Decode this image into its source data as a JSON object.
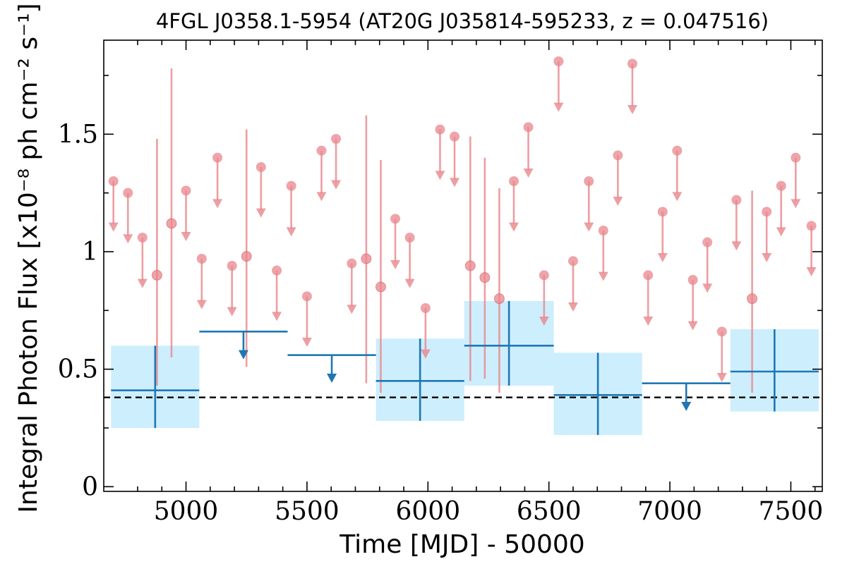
{
  "chart_data": {
    "type": "scatter",
    "title": "4FGL J0358.1-5954 (AT20G J035814-595233, z = 0.047516)",
    "xlabel": "Time [MJD] - 50000",
    "ylabel": "Integral Photon Flux [x10⁻⁸ ph cm⁻² s⁻¹]",
    "xlim": [
      4660,
      7630
    ],
    "ylim": [
      -0.02,
      1.9
    ],
    "xticks": [
      5000,
      5500,
      6000,
      6500,
      7000,
      7500
    ],
    "xtick_labels": [
      "5000",
      "5500",
      "6000",
      "6500",
      "7000",
      "7500"
    ],
    "yticks": [
      0,
      0.5,
      1,
      1.5
    ],
    "ytick_labels": [
      "0",
      "0.5",
      "1",
      "1.5"
    ],
    "reference_line": {
      "y": 0.38,
      "style": "dashed"
    },
    "colors": {
      "fine": "#e8868c",
      "coarse": "#1f77b4",
      "band": "#cdeefc",
      "reference": "#000000"
    },
    "series": [
      {
        "bins": [
          {
            "x": 4700,
            "y": 1.3,
            "ul": true
          },
          {
            "x": 4760,
            "y": 1.25,
            "ul": true
          },
          {
            "x": 4820,
            "y": 1.06,
            "ul": true
          },
          {
            "x": 4880,
            "y": 0.9,
            "lo": 0.43,
            "hi": 1.48
          },
          {
            "x": 4940,
            "y": 1.12,
            "lo": 0.55,
            "hi": 1.78
          },
          {
            "x": 5000,
            "y": 1.26,
            "ul": true
          },
          {
            "x": 5065,
            "y": 0.97,
            "ul": true
          },
          {
            "x": 5130,
            "y": 1.4,
            "ul": true
          },
          {
            "x": 5190,
            "y": 0.94,
            "ul": true
          },
          {
            "x": 5250,
            "y": 0.98,
            "lo": 0.51,
            "hi": 1.52
          },
          {
            "x": 5310,
            "y": 1.36,
            "ul": true
          },
          {
            "x": 5375,
            "y": 0.92,
            "ul": true
          },
          {
            "x": 5435,
            "y": 1.28,
            "ul": true
          },
          {
            "x": 5500,
            "y": 0.81,
            "ul": true
          },
          {
            "x": 5560,
            "y": 1.43,
            "ul": true
          },
          {
            "x": 5620,
            "y": 1.48,
            "ul": true
          },
          {
            "x": 5685,
            "y": 0.95,
            "ul": true
          },
          {
            "x": 5745,
            "y": 0.97,
            "lo": 0.44,
            "hi": 1.58
          },
          {
            "x": 5805,
            "y": 0.85,
            "lo": 0.4,
            "hi": 1.39
          },
          {
            "x": 5865,
            "y": 1.14,
            "ul": true
          },
          {
            "x": 5925,
            "y": 1.06,
            "ul": true
          },
          {
            "x": 5990,
            "y": 0.76,
            "ul": true
          },
          {
            "x": 6050,
            "y": 1.52,
            "ul": true
          },
          {
            "x": 6110,
            "y": 1.49,
            "ul": true
          },
          {
            "x": 6175,
            "y": 0.94,
            "lo": 0.45,
            "hi": 1.49
          },
          {
            "x": 6235,
            "y": 0.89,
            "lo": 0.46,
            "hi": 1.4
          },
          {
            "x": 6295,
            "y": 0.8,
            "lo": 0.4,
            "hi": 1.27
          },
          {
            "x": 6355,
            "y": 1.3,
            "ul": true
          },
          {
            "x": 6415,
            "y": 1.53,
            "ul": true
          },
          {
            "x": 6480,
            "y": 0.9,
            "ul": true
          },
          {
            "x": 6540,
            "y": 1.81,
            "ul": true
          },
          {
            "x": 6600,
            "y": 0.96,
            "ul": true
          },
          {
            "x": 6665,
            "y": 1.3,
            "ul": true
          },
          {
            "x": 6725,
            "y": 1.09,
            "ul": true
          },
          {
            "x": 6785,
            "y": 1.41,
            "ul": true
          },
          {
            "x": 6845,
            "y": 1.8,
            "ul": true
          },
          {
            "x": 6910,
            "y": 0.9,
            "ul": true
          },
          {
            "x": 6970,
            "y": 1.17,
            "ul": true
          },
          {
            "x": 7030,
            "y": 1.43,
            "ul": true
          },
          {
            "x": 7095,
            "y": 0.88,
            "ul": true
          },
          {
            "x": 7155,
            "y": 1.04,
            "ul": true
          },
          {
            "x": 7215,
            "y": 0.66,
            "ul": true
          },
          {
            "x": 7275,
            "y": 1.22,
            "ul": true
          },
          {
            "x": 7340,
            "y": 0.8,
            "lo": 0.4,
            "hi": 1.26
          },
          {
            "x": 7400,
            "y": 1.17,
            "ul": true
          },
          {
            "x": 7460,
            "y": 1.28,
            "ul": true
          },
          {
            "x": 7520,
            "y": 1.4,
            "ul": true
          },
          {
            "x": 7585,
            "y": 1.11,
            "ul": true
          }
        ]
      },
      {
        "bins": [
          {
            "x0": 4690,
            "x1": 5055,
            "y": 0.41,
            "lo": 0.25,
            "hi": 0.6,
            "ul": false
          },
          {
            "x0": 5055,
            "x1": 5420,
            "y": 0.66,
            "ul": true
          },
          {
            "x0": 5420,
            "x1": 5785,
            "y": 0.56,
            "ul": true
          },
          {
            "x0": 5785,
            "x1": 6150,
            "y": 0.45,
            "lo": 0.28,
            "hi": 0.63,
            "ul": false
          },
          {
            "x0": 6150,
            "x1": 6520,
            "y": 0.6,
            "lo": 0.43,
            "hi": 0.79,
            "ul": false
          },
          {
            "x0": 6520,
            "x1": 6885,
            "y": 0.39,
            "lo": 0.22,
            "hi": 0.57,
            "ul": false
          },
          {
            "x0": 6885,
            "x1": 7250,
            "y": 0.44,
            "ul": true
          },
          {
            "x0": 7250,
            "x1": 7615,
            "y": 0.49,
            "lo": 0.32,
            "hi": 0.67,
            "ul": false
          }
        ]
      }
    ]
  }
}
